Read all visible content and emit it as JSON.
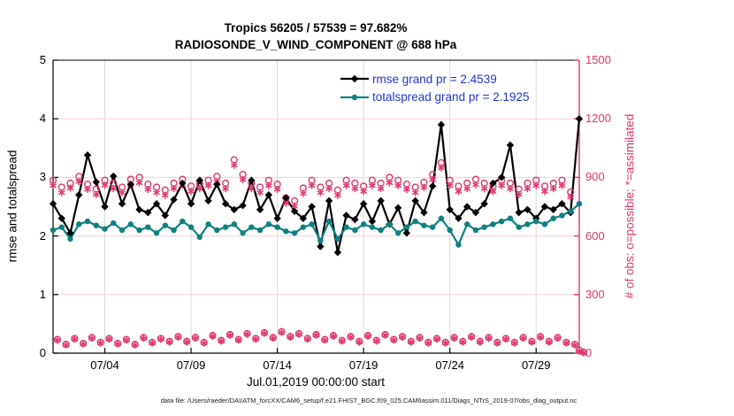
{
  "title": {
    "line1": "Tropics 56205 / 57539 = 97.682%",
    "line2": "RADIOSONDE_V_WIND_COMPONENT @ 688 hPa"
  },
  "footer": "data file: /Users/raeder/DAI/ATM_forcXX/CAM6_setup/f.e21.FHIST_BGC.f09_025.CAM6assim.011/Diags_NTrS_2019-07/obs_diag_output.nc",
  "chart_data": {
    "type": "line",
    "title": "Tropics 56205 / 57539 = 97.682%",
    "subtitle": "RADIOSONDE_V_WIND_COMPONENT @ 688 hPa",
    "xlabel": "Jul.01,2019 00:00:00 start",
    "ylabel_left": "rmse and totalspread",
    "ylabel_right": "# of obs: o=possible; *=assimilated",
    "ylim_left": [
      0,
      5
    ],
    "yticks_left": [
      0,
      1,
      2,
      3,
      4,
      5
    ],
    "ylim_right": [
      0,
      1500
    ],
    "yticks_right": [
      0,
      300,
      600,
      900,
      1200,
      1500
    ],
    "grid": "on",
    "legend_position": "upper-center-inside",
    "xticks": {
      "labels": [
        "07/04",
        "07/09",
        "07/14",
        "07/19",
        "07/24",
        "07/29"
      ],
      "days": [
        3,
        8,
        13,
        18,
        23,
        28
      ]
    },
    "colors": {
      "rmse": "#000000",
      "totalspread": "#0F8080",
      "obs_pink": "#E0356E",
      "legend_text": "#2233CC",
      "grid_grey": "#D9D9D9",
      "grid_pink": "#F7CEDC"
    },
    "legend": [
      {
        "label": "rmse grand pr = 2.4539",
        "series": "rmse"
      },
      {
        "label": "totalspread grand pr = 2.1925",
        "series": "totalspread"
      }
    ],
    "time_step_hours": 12,
    "series": [
      {
        "name": "possible-00-12Z",
        "axis": "right",
        "marker": "open-circle",
        "line": false,
        "offset": 0,
        "values": [
          885,
          850,
          870,
          905,
          865,
          840,
          885,
          870,
          850,
          890,
          900,
          865,
          850,
          835,
          870,
          890,
          855,
          870,
          885,
          905,
          870,
          990,
          915,
          870,
          850,
          885,
          865,
          795,
          780,
          845,
          885,
          850,
          870,
          835,
          885,
          870,
          855,
          885,
          870,
          900,
          885,
          865,
          850,
          875,
          915,
          975,
          885,
          855,
          870,
          890,
          870,
          855,
          885,
          870,
          840,
          870,
          885,
          855,
          870,
          885,
          825,
          15
        ]
      },
      {
        "name": "assimilated-00-12Z",
        "axis": "right",
        "marker": "asterisk",
        "line": false,
        "offset": 0,
        "values": [
          858,
          822,
          845,
          878,
          838,
          812,
          860,
          842,
          822,
          862,
          872,
          838,
          822,
          808,
          842,
          862,
          828,
          842,
          858,
          878,
          842,
          962,
          888,
          842,
          822,
          858,
          838,
          768,
          752,
          818,
          858,
          822,
          842,
          808,
          858,
          842,
          828,
          858,
          842,
          872,
          858,
          838,
          822,
          848,
          888,
          948,
          858,
          828,
          842,
          862,
          842,
          828,
          858,
          842,
          812,
          842,
          858,
          828,
          842,
          858,
          798,
          10
        ]
      },
      {
        "name": "possible-06-18Z",
        "axis": "right",
        "marker": "open-circle",
        "line": false,
        "offset": 0.5,
        "values": [
          70,
          45,
          75,
          50,
          80,
          55,
          75,
          50,
          70,
          45,
          80,
          55,
          75,
          60,
          85,
          60,
          80,
          55,
          90,
          65,
          95,
          70,
          100,
          75,
          105,
          80,
          110,
          85,
          100,
          75,
          95,
          70,
          90,
          65,
          85,
          60,
          90,
          65,
          95,
          70,
          85,
          60,
          80,
          55,
          75,
          55,
          80,
          60,
          85,
          60,
          80,
          55,
          75,
          55,
          80,
          60,
          85,
          60,
          80,
          55,
          45,
          5
        ]
      },
      {
        "name": "assimilated-06-18Z",
        "axis": "right",
        "marker": "asterisk",
        "line": false,
        "offset": 0.5,
        "values": [
          67,
          42,
          72,
          47,
          77,
          52,
          72,
          47,
          67,
          42,
          77,
          52,
          72,
          57,
          82,
          57,
          77,
          52,
          87,
          62,
          92,
          67,
          97,
          72,
          102,
          77,
          107,
          82,
          97,
          72,
          92,
          67,
          87,
          62,
          82,
          57,
          87,
          62,
          92,
          67,
          82,
          57,
          77,
          52,
          72,
          52,
          77,
          57,
          82,
          57,
          77,
          52,
          72,
          52,
          77,
          57,
          82,
          57,
          77,
          52,
          42,
          2
        ]
      },
      {
        "name": "rmse",
        "axis": "left",
        "marker": "diamond",
        "line": true,
        "offset": 0,
        "values": [
          2.55,
          2.3,
          2.05,
          2.7,
          3.38,
          2.92,
          2.5,
          3.02,
          2.55,
          2.88,
          2.45,
          2.4,
          2.55,
          2.35,
          2.62,
          2.9,
          2.55,
          2.95,
          2.6,
          2.88,
          2.55,
          2.45,
          2.52,
          2.95,
          2.45,
          2.7,
          2.3,
          2.65,
          2.42,
          2.3,
          2.5,
          1.82,
          2.6,
          1.72,
          2.35,
          2.28,
          2.55,
          2.25,
          2.6,
          2.2,
          2.48,
          2.05,
          2.6,
          2.4,
          2.85,
          3.9,
          2.45,
          2.3,
          2.5,
          2.4,
          2.55,
          2.9,
          3.0,
          3.55,
          2.4,
          2.45,
          2.3,
          2.5,
          2.45,
          2.55,
          2.4,
          4.0
        ]
      },
      {
        "name": "totalspread",
        "axis": "left",
        "marker": "circle",
        "line": true,
        "offset": 0,
        "values": [
          2.1,
          2.15,
          1.95,
          2.2,
          2.25,
          2.18,
          2.12,
          2.22,
          2.1,
          2.2,
          2.1,
          2.15,
          2.05,
          2.18,
          2.1,
          2.25,
          2.15,
          1.98,
          2.2,
          2.1,
          2.15,
          2.2,
          2.05,
          2.15,
          2.1,
          2.2,
          2.15,
          2.08,
          2.05,
          2.15,
          2.2,
          1.92,
          2.25,
          1.95,
          2.15,
          2.1,
          2.2,
          2.15,
          2.1,
          2.2,
          2.05,
          2.15,
          2.25,
          2.18,
          2.15,
          2.3,
          2.1,
          1.85,
          2.2,
          2.1,
          2.15,
          2.2,
          2.25,
          2.3,
          2.15,
          2.2,
          2.25,
          2.2,
          2.3,
          2.35,
          2.42,
          2.55
        ]
      }
    ]
  }
}
